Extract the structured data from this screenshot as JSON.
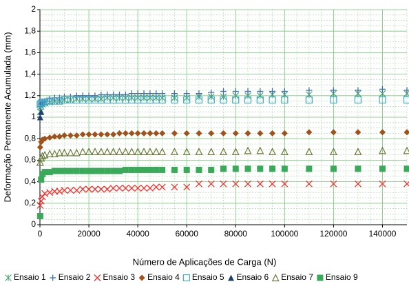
{
  "chart_data": {
    "type": "scatter",
    "xlabel": "Número de Aplicações de Carga (N)",
    "ylabel": "Deformação Permanente Acumulada (mm)",
    "x": [
      100,
      500,
      1000,
      2000,
      4000,
      6000,
      8000,
      10000,
      12500,
      15000,
      17500,
      20000,
      22500,
      25000,
      27500,
      30000,
      32500,
      35000,
      37500,
      40000,
      42500,
      45000,
      47500,
      50000,
      55000,
      60000,
      65000,
      70000,
      75000,
      80000,
      85000,
      90000,
      95000,
      100000,
      110000,
      120000,
      130000,
      140000,
      150000
    ],
    "series": [
      {
        "name": "Ensaio 1",
        "color": "#4aa574",
        "marker": "star",
        "values": [
          1.05,
          1.1,
          1.12,
          1.13,
          1.14,
          1.15,
          1.15,
          1.16,
          1.16,
          1.17,
          1.17,
          1.17,
          1.17,
          1.17,
          1.18,
          1.18,
          1.18,
          1.18,
          1.18,
          1.18,
          1.18,
          1.18,
          1.18,
          1.18,
          1.18,
          1.18,
          1.19,
          1.19,
          1.19,
          1.2,
          1.2,
          1.2,
          1.21,
          1.21,
          1.21,
          1.22,
          1.22,
          1.22,
          1.22
        ]
      },
      {
        "name": "Ensaio 2",
        "color": "#3f6fa8",
        "marker": "plus",
        "values": [
          1.1,
          1.12,
          1.14,
          1.15,
          1.17,
          1.18,
          1.18,
          1.19,
          1.19,
          1.2,
          1.2,
          1.2,
          1.2,
          1.21,
          1.21,
          1.21,
          1.21,
          1.21,
          1.22,
          1.22,
          1.22,
          1.22,
          1.22,
          1.22,
          1.22,
          1.22,
          1.22,
          1.23,
          1.24,
          1.24,
          1.24,
          1.24,
          1.24,
          1.24,
          1.25,
          1.25,
          1.25,
          1.26,
          1.25
        ]
      },
      {
        "name": "Ensaio 3",
        "color": "#ff2a2a",
        "marker": "x",
        "values": [
          0.18,
          0.22,
          0.26,
          0.29,
          0.3,
          0.31,
          0.31,
          0.32,
          0.32,
          0.32,
          0.33,
          0.33,
          0.33,
          0.33,
          0.33,
          0.34,
          0.34,
          0.34,
          0.34,
          0.34,
          0.34,
          0.34,
          0.35,
          0.35,
          0.35,
          0.35,
          0.38,
          0.38,
          0.38,
          0.38,
          0.38,
          0.38,
          0.38,
          0.38,
          0.38,
          0.38,
          0.38,
          0.38,
          0.38
        ]
      },
      {
        "name": "Ensaio 4",
        "color": "#a0521a",
        "marker": "diamond",
        "values": [
          0.72,
          0.77,
          0.79,
          0.8,
          0.81,
          0.82,
          0.82,
          0.83,
          0.83,
          0.83,
          0.84,
          0.84,
          0.84,
          0.84,
          0.84,
          0.84,
          0.85,
          0.85,
          0.85,
          0.85,
          0.85,
          0.85,
          0.85,
          0.85,
          0.85,
          0.85,
          0.85,
          0.85,
          0.85,
          0.85,
          0.85,
          0.85,
          0.85,
          0.85,
          0.86,
          0.86,
          0.86,
          0.86,
          0.86
        ]
      },
      {
        "name": "Ensaio 5",
        "color": "#41a8c8",
        "marker": "square-open",
        "values": [
          1.12,
          1.13,
          1.14,
          1.14,
          1.15,
          1.15,
          1.15,
          1.16,
          1.16,
          1.16,
          1.16,
          1.16,
          1.16,
          1.16,
          1.16,
          1.16,
          1.16,
          1.16,
          1.16,
          1.16,
          1.16,
          1.16,
          1.16,
          1.16,
          1.16,
          1.16,
          1.16,
          1.16,
          1.16,
          1.16,
          1.16,
          1.16,
          1.16,
          1.16,
          1.16,
          1.16,
          1.16,
          1.16,
          1.16
        ]
      },
      {
        "name": "Ensaio 6",
        "color": "#1f3f6f",
        "marker": "triangle",
        "values": [
          1.0,
          1.05,
          null,
          null,
          null,
          null,
          null,
          null,
          null,
          null,
          null,
          null,
          null,
          null,
          null,
          null,
          null,
          null,
          null,
          null,
          null,
          null,
          null,
          null,
          null,
          null,
          null,
          null,
          null,
          null,
          null,
          null,
          null,
          null,
          null,
          null,
          null,
          null,
          null
        ]
      },
      {
        "name": "Ensaio 7",
        "color": "#6b7a3a",
        "marker": "triangle-open",
        "values": [
          0.58,
          0.62,
          0.64,
          0.65,
          0.66,
          0.66,
          0.67,
          0.67,
          0.67,
          0.67,
          0.68,
          0.68,
          0.68,
          0.68,
          0.68,
          0.68,
          0.68,
          0.68,
          0.68,
          0.68,
          0.68,
          0.68,
          0.68,
          0.68,
          0.68,
          0.68,
          0.68,
          0.68,
          0.68,
          0.68,
          0.69,
          0.69,
          0.68,
          0.68,
          0.68,
          0.68,
          0.68,
          0.69,
          0.69
        ]
      },
      {
        "name": "Ensaio 9",
        "color": "#3aaa5a",
        "marker": "square",
        "values": [
          0.08,
          0.42,
          0.47,
          0.49,
          0.49,
          0.5,
          0.5,
          0.5,
          0.5,
          0.5,
          0.5,
          0.5,
          0.5,
          0.5,
          0.5,
          0.5,
          0.5,
          0.51,
          0.51,
          0.51,
          0.51,
          0.51,
          0.51,
          0.51,
          0.51,
          0.51,
          0.51,
          0.51,
          0.52,
          0.52,
          0.52,
          0.52,
          0.52,
          0.52,
          0.52,
          0.52,
          0.52,
          0.52,
          0.52
        ]
      }
    ],
    "xlim": [
      0,
      150000
    ],
    "xticks": [
      0,
      20000,
      40000,
      60000,
      80000,
      100000,
      120000,
      140000
    ],
    "ylim": [
      0,
      2
    ],
    "yticks": [
      0,
      {
        "value": 0.2,
        "label": "0,2"
      },
      {
        "value": 0.4,
        "label": "0,4"
      },
      {
        "value": 0.6,
        "label": "0,6"
      },
      {
        "value": 0.8,
        "label": "0,8"
      },
      1,
      {
        "value": 1.2,
        "label": "1,2"
      },
      {
        "value": 1.4,
        "label": "1,4"
      },
      {
        "value": 1.6,
        "label": "1,6"
      },
      {
        "value": 1.8,
        "label": "1,8"
      },
      2
    ],
    "grid": true,
    "legend": "bottom"
  }
}
